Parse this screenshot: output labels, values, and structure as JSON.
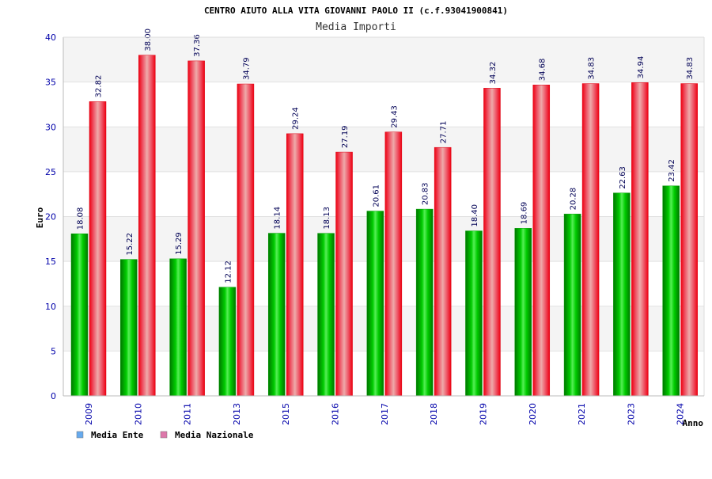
{
  "chart_data": {
    "type": "bar",
    "title": "CENTRO AIUTO ALLA VITA GIOVANNI PAOLO II (c.f.93041900841)",
    "subtitle": "Media Importi",
    "xlabel": "Anno",
    "ylabel": "Euro",
    "ylim": [
      0,
      40
    ],
    "yticks": [
      0,
      5,
      10,
      15,
      20,
      25,
      30,
      35,
      40
    ],
    "grid": true,
    "legend_position": "bottom-left",
    "categories": [
      "2009",
      "2010",
      "2011",
      "2013",
      "2015",
      "2016",
      "2017",
      "2018",
      "2019",
      "2020",
      "2021",
      "2023",
      "2024"
    ],
    "series": [
      {
        "name": "Media Ente",
        "color": "#00cc00",
        "legend_color": "#66aaee",
        "values": [
          18.08,
          15.22,
          15.29,
          12.12,
          18.14,
          18.13,
          20.61,
          20.83,
          18.4,
          18.69,
          20.28,
          22.63,
          23.42
        ],
        "labels": [
          "18.08",
          "15.22",
          "15.29",
          "12.12",
          "18.14",
          "18.13",
          "20.61",
          "20.83",
          "18.40",
          "18.69",
          "20.28",
          "22.63",
          "23.42"
        ]
      },
      {
        "name": "Media Nazionale",
        "color": "#ee0011",
        "legend_color": "#dd77aa",
        "values": [
          32.82,
          38.0,
          37.36,
          34.79,
          29.24,
          27.19,
          29.43,
          27.71,
          34.32,
          34.68,
          34.83,
          34.94,
          34.83
        ],
        "labels": [
          "32.82",
          "38.00",
          "37.36",
          "34.79",
          "29.24",
          "27.19",
          "29.43",
          "27.71",
          "34.32",
          "34.68",
          "34.83",
          "34.94",
          "34.83"
        ]
      }
    ]
  }
}
